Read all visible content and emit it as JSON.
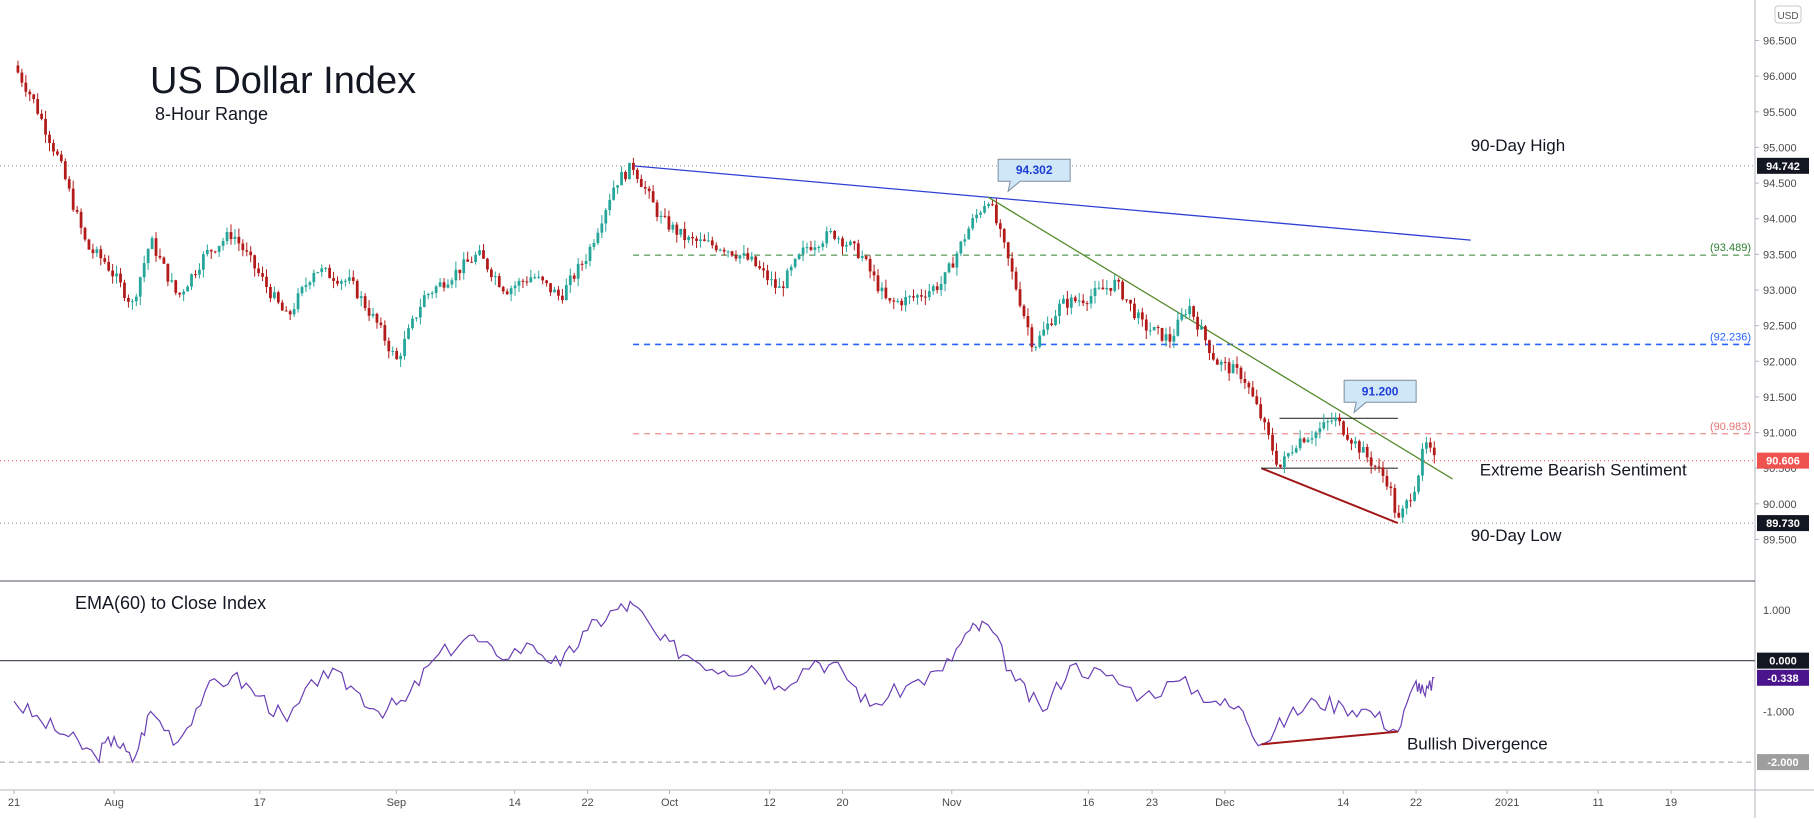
{
  "chart_data": [
    {
      "type": "candlestick",
      "title": "US Dollar Index",
      "subtitle": "8-Hour Range",
      "currency_badge": "USD",
      "ylim": [
        89.1,
        96.9
      ],
      "y_ticks": [
        "89.500",
        "90.000",
        "90.500",
        "91.000",
        "91.500",
        "92.000",
        "92.500",
        "93.000",
        "93.500",
        "94.000",
        "94.500",
        "95.000",
        "95.500",
        "96.000",
        "96.500"
      ],
      "x_ticks": [
        {
          "label": "21",
          "date": "2020-07-21"
        },
        {
          "label": "Aug",
          "date": "2020-08-01"
        },
        {
          "label": "17",
          "date": "2020-08-17"
        },
        {
          "label": "Sep",
          "date": "2020-09-01"
        },
        {
          "label": "14",
          "date": "2020-09-14"
        },
        {
          "label": "22",
          "date": "2020-09-22"
        },
        {
          "label": "Oct",
          "date": "2020-10-01"
        },
        {
          "label": "12",
          "date": "2020-10-12"
        },
        {
          "label": "20",
          "date": "2020-10-20"
        },
        {
          "label": "Nov",
          "date": "2020-11-01"
        },
        {
          "label": "16",
          "date": "2020-11-16"
        },
        {
          "label": "23",
          "date": "2020-11-23"
        },
        {
          "label": "Dec",
          "date": "2020-12-01"
        },
        {
          "label": "14",
          "date": "2020-12-14"
        },
        {
          "label": "22",
          "date": "2020-12-22"
        },
        {
          "label": "2021",
          "date": "2021-01-01"
        },
        {
          "label": "11",
          "date": "2021-01-11"
        },
        {
          "label": "19",
          "date": "2021-01-19"
        }
      ],
      "price_path": [
        {
          "date": "2020-07-21",
          "close": 96.15
        },
        {
          "date": "2020-07-23",
          "close": 95.7
        },
        {
          "date": "2020-07-26",
          "close": 94.8
        },
        {
          "date": "2020-07-29",
          "close": 93.6
        },
        {
          "date": "2020-07-31",
          "close": 93.4
        },
        {
          "date": "2020-08-03",
          "close": 92.8
        },
        {
          "date": "2020-08-05",
          "close": 93.7
        },
        {
          "date": "2020-08-08",
          "close": 92.9
        },
        {
          "date": "2020-08-11",
          "close": 93.5
        },
        {
          "date": "2020-08-14",
          "close": 93.8
        },
        {
          "date": "2020-08-17",
          "close": 93.2
        },
        {
          "date": "2020-08-20",
          "close": 92.6
        },
        {
          "date": "2020-08-23",
          "close": 93.3
        },
        {
          "date": "2020-08-27",
          "close": 93.1
        },
        {
          "date": "2020-08-30",
          "close": 92.5
        },
        {
          "date": "2020-09-01",
          "close": 92.0
        },
        {
          "date": "2020-09-04",
          "close": 92.9
        },
        {
          "date": "2020-09-07",
          "close": 93.2
        },
        {
          "date": "2020-09-10",
          "close": 93.5
        },
        {
          "date": "2020-09-13",
          "close": 93.0
        },
        {
          "date": "2020-09-16",
          "close": 93.2
        },
        {
          "date": "2020-09-19",
          "close": 92.9
        },
        {
          "date": "2020-09-22",
          "close": 93.5
        },
        {
          "date": "2020-09-25",
          "close": 94.5
        },
        {
          "date": "2020-09-27",
          "close": 94.742
        },
        {
          "date": "2020-09-30",
          "close": 94.0
        },
        {
          "date": "2020-10-03",
          "close": 93.7
        },
        {
          "date": "2020-10-07",
          "close": 93.6
        },
        {
          "date": "2020-10-10",
          "close": 93.4
        },
        {
          "date": "2020-10-13",
          "close": 93.0
        },
        {
          "date": "2020-10-16",
          "close": 93.6
        },
        {
          "date": "2020-10-19",
          "close": 93.8
        },
        {
          "date": "2020-10-22",
          "close": 93.5
        },
        {
          "date": "2020-10-25",
          "close": 92.8
        },
        {
          "date": "2020-10-28",
          "close": 92.9
        },
        {
          "date": "2020-10-31",
          "close": 93.1
        },
        {
          "date": "2020-11-03",
          "close": 93.9
        },
        {
          "date": "2020-11-05",
          "close": 94.302
        },
        {
          "date": "2020-11-07",
          "close": 93.5
        },
        {
          "date": "2020-11-10",
          "close": 92.2
        },
        {
          "date": "2020-11-13",
          "close": 92.8
        },
        {
          "date": "2020-11-16",
          "close": 92.9
        },
        {
          "date": "2020-11-19",
          "close": 93.1
        },
        {
          "date": "2020-11-22",
          "close": 92.5
        },
        {
          "date": "2020-11-25",
          "close": 92.3
        },
        {
          "date": "2020-11-27",
          "close": 92.8
        },
        {
          "date": "2020-11-30",
          "close": 92.0
        },
        {
          "date": "2020-12-03",
          "close": 91.8
        },
        {
          "date": "2020-12-05",
          "close": 91.2
        },
        {
          "date": "2020-12-07",
          "close": 90.5
        },
        {
          "date": "2020-12-09",
          "close": 90.9
        },
        {
          "date": "2020-12-11",
          "close": 91.0
        },
        {
          "date": "2020-12-13",
          "close": 91.2
        },
        {
          "date": "2020-12-15",
          "close": 90.9
        },
        {
          "date": "2020-12-17",
          "close": 90.6
        },
        {
          "date": "2020-12-19",
          "close": 90.3
        },
        {
          "date": "2020-12-20",
          "close": 89.73
        },
        {
          "date": "2020-12-22",
          "close": 90.3
        },
        {
          "date": "2020-12-23",
          "close": 90.85
        },
        {
          "date": "2020-12-24",
          "close": 90.606
        }
      ],
      "levels": [
        {
          "label": "94.742",
          "value": 94.742,
          "style": "dotted-gray",
          "badge_color": "#131722"
        },
        {
          "label": "(93.489)",
          "value": 93.489,
          "style": "dashed-green",
          "color": "#2e7d32"
        },
        {
          "label": "(92.236)",
          "value": 92.236,
          "style": "dashed-blue",
          "color": "#2962ff"
        },
        {
          "label": "(90.983)",
          "value": 90.983,
          "style": "dashed-red",
          "color": "#e57373"
        },
        {
          "label": "90.606",
          "value": 90.606,
          "style": "dotted-red",
          "badge_color": "#ef5350"
        },
        {
          "label": "89.730",
          "value": 89.73,
          "style": "dotted-gray",
          "badge_color": "#131722"
        }
      ],
      "callouts": [
        {
          "label": "94.302",
          "date": "2020-11-05",
          "value": 94.302
        },
        {
          "label": "91.200",
          "date": "2020-12-13",
          "value": 91.2
        }
      ],
      "trendlines": [
        {
          "name": "blue-downtrend",
          "from": {
            "date": "2020-09-27",
            "value": 94.742
          },
          "to": {
            "date": "2020-12-28",
            "value": 93.7
          },
          "color": "#2e3fd6"
        },
        {
          "name": "green-downtrend",
          "from": {
            "date": "2020-11-05",
            "value": 94.302
          },
          "to": {
            "date": "2020-12-26",
            "value": 90.35
          },
          "color": "#558b2f"
        },
        {
          "name": "red-support",
          "from": {
            "date": "2020-12-05",
            "value": 90.5
          },
          "to": {
            "date": "2020-12-20",
            "value": 89.73
          },
          "color": "#a11717"
        }
      ],
      "annotations": [
        {
          "text": "90-Day High",
          "date": "2020-12-28",
          "value": 94.95
        },
        {
          "text": "Extreme Bearish Sentiment",
          "date": "2020-12-29",
          "value": 90.4
        },
        {
          "text": "90-Day Low",
          "date": "2020-12-28",
          "value": 89.48
        }
      ],
      "up_color": "#26a69a",
      "down_color": "#b31b1b"
    },
    {
      "type": "line",
      "title": "EMA(60) to Close Index",
      "ylim": [
        -2.55,
        1.55
      ],
      "y_ticks": [
        "1.000",
        "-1.000"
      ],
      "series": [
        {
          "color": "#6a3fb5",
          "points": [
            {
              "date": "2020-07-21",
              "value": -0.8
            },
            {
              "date": "2020-07-24",
              "value": -1.2
            },
            {
              "date": "2020-07-27",
              "value": -1.5
            },
            {
              "date": "2020-07-30",
              "value": -1.9
            },
            {
              "date": "2020-08-01",
              "value": -1.5
            },
            {
              "date": "2020-08-03",
              "value": -2.0
            },
            {
              "date": "2020-08-05",
              "value": -1.0
            },
            {
              "date": "2020-08-08",
              "value": -1.6
            },
            {
              "date": "2020-08-11",
              "value": -0.6
            },
            {
              "date": "2020-08-14",
              "value": -0.3
            },
            {
              "date": "2020-08-17",
              "value": -0.7
            },
            {
              "date": "2020-08-20",
              "value": -1.2
            },
            {
              "date": "2020-08-24",
              "value": -0.2
            },
            {
              "date": "2020-08-27",
              "value": -0.5
            },
            {
              "date": "2020-08-30",
              "value": -1.0
            },
            {
              "date": "2020-09-02",
              "value": -0.8
            },
            {
              "date": "2020-09-05",
              "value": 0.0
            },
            {
              "date": "2020-09-09",
              "value": 0.5
            },
            {
              "date": "2020-09-12",
              "value": 0.1
            },
            {
              "date": "2020-09-16",
              "value": 0.3
            },
            {
              "date": "2020-09-19",
              "value": -0.1
            },
            {
              "date": "2020-09-22",
              "value": 0.6
            },
            {
              "date": "2020-09-25",
              "value": 1.0
            },
            {
              "date": "2020-09-27",
              "value": 1.1
            },
            {
              "date": "2020-09-30",
              "value": 0.4
            },
            {
              "date": "2020-10-03",
              "value": 0.1
            },
            {
              "date": "2020-10-07",
              "value": -0.2
            },
            {
              "date": "2020-10-10",
              "value": -0.1
            },
            {
              "date": "2020-10-13",
              "value": -0.5
            },
            {
              "date": "2020-10-17",
              "value": 0.0
            },
            {
              "date": "2020-10-20",
              "value": -0.2
            },
            {
              "date": "2020-10-23",
              "value": -0.9
            },
            {
              "date": "2020-10-27",
              "value": -0.5
            },
            {
              "date": "2020-10-31",
              "value": -0.2
            },
            {
              "date": "2020-11-03",
              "value": 0.6
            },
            {
              "date": "2020-11-05",
              "value": 0.7
            },
            {
              "date": "2020-11-08",
              "value": -0.4
            },
            {
              "date": "2020-11-11",
              "value": -1.0
            },
            {
              "date": "2020-11-14",
              "value": -0.1
            },
            {
              "date": "2020-11-18",
              "value": -0.3
            },
            {
              "date": "2020-11-22",
              "value": -0.7
            },
            {
              "date": "2020-11-26",
              "value": -0.4
            },
            {
              "date": "2020-11-30",
              "value": -0.8
            },
            {
              "date": "2020-12-03",
              "value": -1.0
            },
            {
              "date": "2020-12-05",
              "value": -1.65
            },
            {
              "date": "2020-12-08",
              "value": -1.1
            },
            {
              "date": "2020-12-11",
              "value": -0.8
            },
            {
              "date": "2020-12-14",
              "value": -0.9
            },
            {
              "date": "2020-12-17",
              "value": -1.0
            },
            {
              "date": "2020-12-20",
              "value": -1.4
            },
            {
              "date": "2020-12-22",
              "value": -0.4
            },
            {
              "date": "2020-12-23",
              "value": -0.7
            },
            {
              "date": "2020-12-24",
              "value": -0.338
            }
          ]
        }
      ],
      "levels": [
        {
          "label": "0.000",
          "value": 0.0,
          "style": "solid-dark",
          "badge_color": "#131722"
        },
        {
          "label": "-0.338",
          "value": -0.338,
          "style": "none",
          "badge_color": "#4a148c"
        },
        {
          "label": "-2.000",
          "value": -2.0,
          "style": "dashed-gray",
          "badge_color": "#9e9e9e"
        }
      ],
      "trendlines": [
        {
          "name": "divergence",
          "from": {
            "date": "2020-12-05",
            "value": -1.65
          },
          "to": {
            "date": "2020-12-20",
            "value": -1.4
          },
          "color": "#a11717"
        }
      ],
      "annotations": [
        {
          "text": "Bullish Divergence",
          "date": "2020-12-21",
          "value": -1.75
        }
      ]
    }
  ]
}
